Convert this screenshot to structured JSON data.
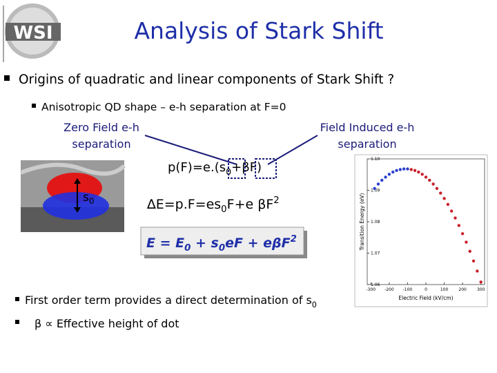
{
  "logo": "WSI",
  "title": "Analysis of Stark Shift",
  "bullet1": "Origins of quadratic and linear components of Stark Shift ?",
  "sub_bullet": "Anisotropic QD shape – e-h separation at F=0",
  "zero_field": [
    "Zero Field e-h",
    "separation"
  ],
  "field_induced": [
    "Field Induced e-h",
    "separation"
  ],
  "dipole": [
    "p(F)=e.(s",
    "0",
    "+βF)"
  ],
  "dot_label": [
    "s",
    "0"
  ],
  "energy_shift": [
    "∆E=p.F=es",
    "0",
    "F+e βF",
    "2"
  ],
  "boxed_formula": [
    "E = E",
    "0",
    " + s",
    "0",
    "eF + eβF",
    "2"
  ],
  "bullet2": [
    "First order term provides a direct determination of s",
    "0"
  ],
  "bullet3": "β ∝ Effective height of dot",
  "plot": {
    "type": "scatter",
    "xlabel": "Electric Field (kV/cm)",
    "ylabel": "Transition Energy (eV)",
    "xlim": [
      -320,
      320
    ],
    "ylim": [
      1.06,
      1.1
    ],
    "xticks": [
      -300,
      -200,
      -100,
      0,
      100,
      200,
      300
    ],
    "yticks": [
      1.06,
      1.07,
      1.08,
      1.09,
      {
        "value": 1.1,
        "label": "1.10"
      }
    ],
    "series": [
      {
        "color": "#2a3fd0",
        "x": [
          -280,
          -260,
          -240,
          -220,
          -200,
          -180,
          -160,
          -140,
          -120,
          -100
        ],
        "values": [
          1.0906,
          1.092,
          1.0932,
          1.0942,
          1.0951,
          1.0958,
          1.0963,
          1.0966,
          1.0968,
          1.0968
        ]
      },
      {
        "color": "#c8202a",
        "x": [
          -80,
          -60,
          -40,
          -20,
          0,
          20,
          40,
          60,
          80,
          100,
          120,
          140,
          160,
          180,
          200,
          220,
          240,
          260,
          280,
          300
        ],
        "values": [
          1.0966,
          1.0963,
          1.0958,
          1.0951,
          1.0942,
          1.0932,
          1.092,
          1.0906,
          1.0891,
          1.0874,
          1.0855,
          1.0834,
          1.0812,
          1.0788,
          1.0762,
          1.0735,
          1.0706,
          1.0675,
          1.0643,
          1.0608
        ]
      }
    ]
  }
}
